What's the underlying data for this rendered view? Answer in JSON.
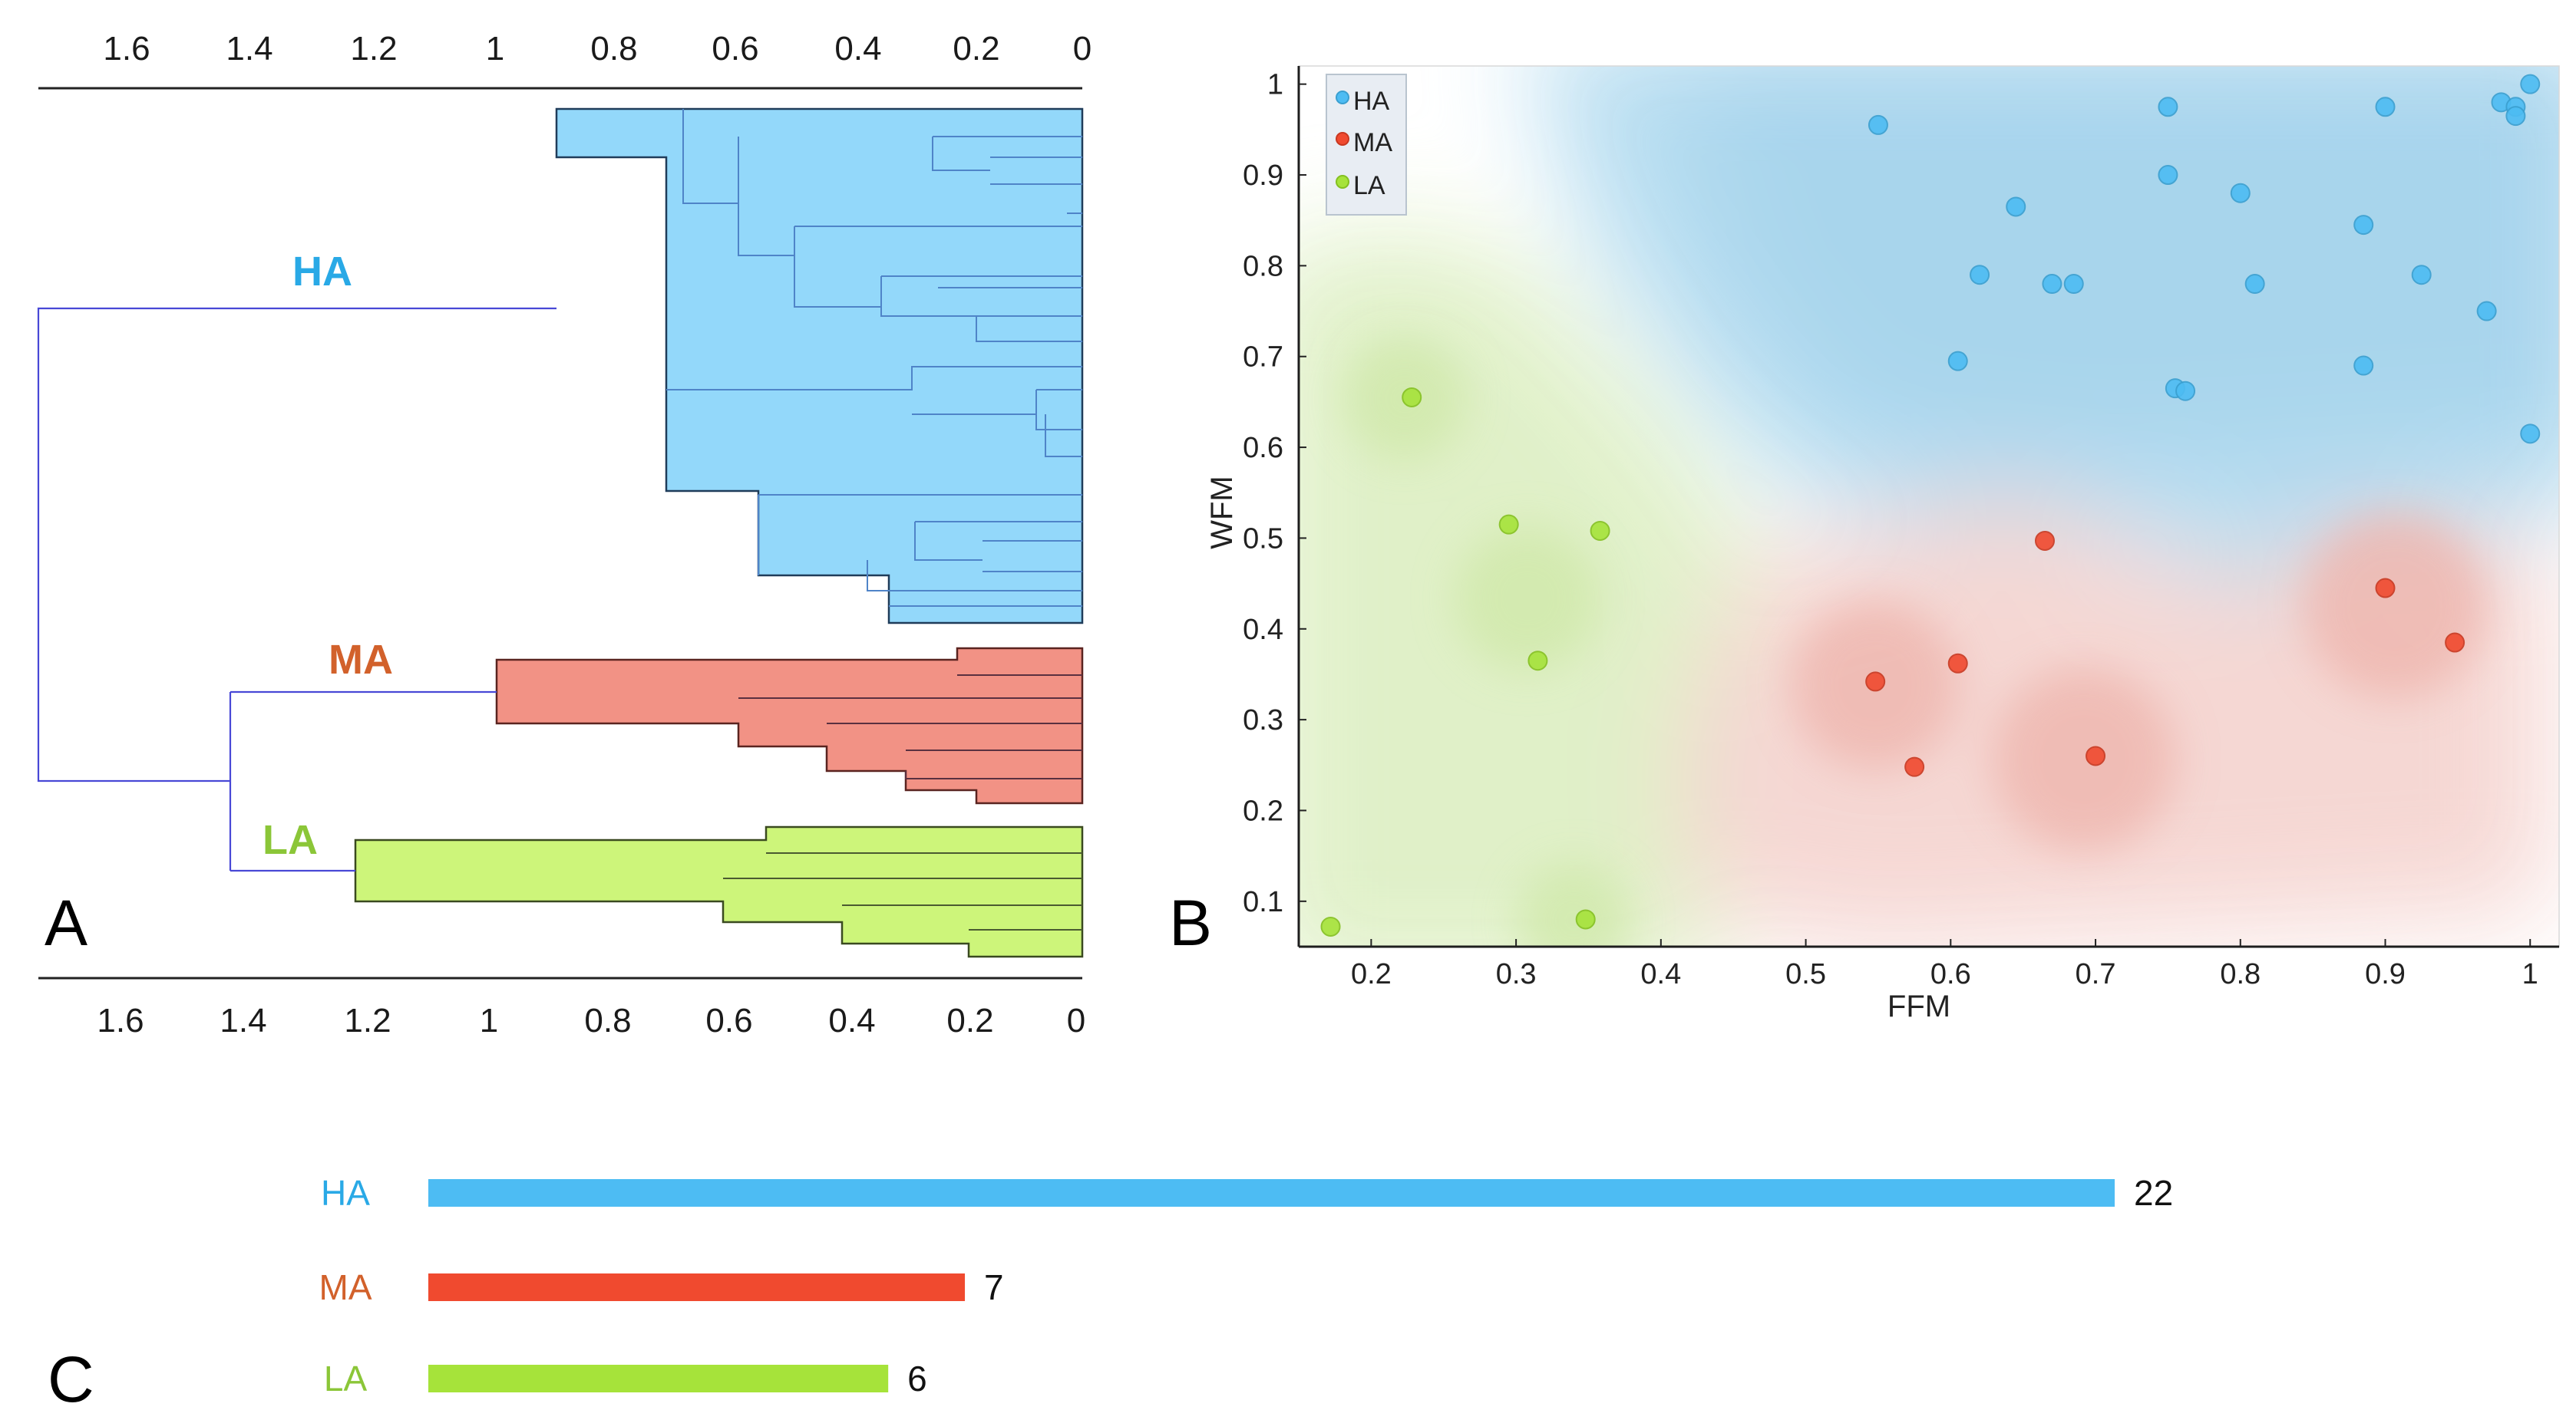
{
  "panel_letters": {
    "a": "A",
    "b": "B",
    "c": "C"
  },
  "colors": {
    "HA": "#4dbcf3",
    "MA": "#f04a2f",
    "LA": "#a6e33a",
    "HA_fill": "#93d8fa",
    "MA_fill": "#f29285",
    "LA_fill": "#cdf57a",
    "HA_text": "#29a9e6",
    "MA_text": "#d2612b",
    "LA_text": "#8bc638"
  },
  "chart_data": [
    {
      "id": "A",
      "type": "dendrogram",
      "title": "",
      "axis_top_ticks": [
        "1.6",
        "1.4",
        "1.2",
        "1",
        "0.8",
        "0.6",
        "0.4",
        "0.2",
        "0"
      ],
      "axis_bottom_ticks": [
        "1.6",
        "1.4",
        "1.2",
        "1",
        "0.8",
        "0.6",
        "0.4",
        "0.2",
        "0"
      ],
      "xlim": [
        1.7,
        0
      ],
      "clusters": [
        {
          "label": "HA",
          "leaves": 22,
          "merge_height": 0.87
        },
        {
          "label": "MA",
          "leaves": 7,
          "merge_height": 0.97
        },
        {
          "label": "LA",
          "leaves": 6,
          "merge_height": 1.19
        }
      ],
      "links": [
        {
          "join": [
            "MA",
            "LA"
          ],
          "height": 1.4
        },
        {
          "join": [
            "HA",
            "MA+LA"
          ],
          "height": 1.71
        }
      ]
    },
    {
      "id": "B",
      "type": "scatter",
      "title": "",
      "xlabel": "FFM",
      "ylabel": "WFM",
      "xlim": [
        0.15,
        1.02
      ],
      "ylim": [
        0.05,
        1.02
      ],
      "xticks": [
        "0.2",
        "0.3",
        "0.4",
        "0.5",
        "0.6",
        "0.7",
        "0.8",
        "0.9",
        "1"
      ],
      "yticks": [
        "0.1",
        "0.2",
        "0.3",
        "0.4",
        "0.5",
        "0.6",
        "0.7",
        "0.8",
        "0.9",
        "1"
      ],
      "legend": {
        "position": "top-left",
        "entries": [
          "HA",
          "MA",
          "LA"
        ]
      },
      "series": [
        {
          "name": "HA",
          "points": [
            [
              0.55,
              0.955
            ],
            [
              0.75,
              0.975
            ],
            [
              0.75,
              0.9
            ],
            [
              0.8,
              0.88
            ],
            [
              0.9,
              0.975
            ],
            [
              0.98,
              0.98
            ],
            [
              0.99,
              0.975
            ],
            [
              0.99,
              0.965
            ],
            [
              1.0,
              1.0
            ],
            [
              0.645,
              0.865
            ],
            [
              0.885,
              0.845
            ],
            [
              0.62,
              0.79
            ],
            [
              0.67,
              0.78
            ],
            [
              0.685,
              0.78
            ],
            [
              0.81,
              0.78
            ],
            [
              0.925,
              0.79
            ],
            [
              0.97,
              0.75
            ],
            [
              0.605,
              0.695
            ],
            [
              0.885,
              0.69
            ],
            [
              0.755,
              0.665
            ],
            [
              0.762,
              0.662
            ],
            [
              1.0,
              0.615
            ]
          ]
        },
        {
          "name": "MA",
          "points": [
            [
              0.665,
              0.497
            ],
            [
              0.9,
              0.445
            ],
            [
              0.948,
              0.385
            ],
            [
              0.548,
              0.342
            ],
            [
              0.605,
              0.362
            ],
            [
              0.575,
              0.248
            ],
            [
              0.7,
              0.26
            ]
          ]
        },
        {
          "name": "LA",
          "points": [
            [
              0.228,
              0.655
            ],
            [
              0.295,
              0.515
            ],
            [
              0.358,
              0.508
            ],
            [
              0.315,
              0.365
            ],
            [
              0.172,
              0.072
            ],
            [
              0.348,
              0.08
            ]
          ]
        }
      ]
    },
    {
      "id": "C",
      "type": "bar",
      "orientation": "horizontal",
      "title": "",
      "categories": [
        "HA",
        "MA",
        "LA"
      ],
      "values": [
        22,
        7,
        6
      ]
    }
  ]
}
